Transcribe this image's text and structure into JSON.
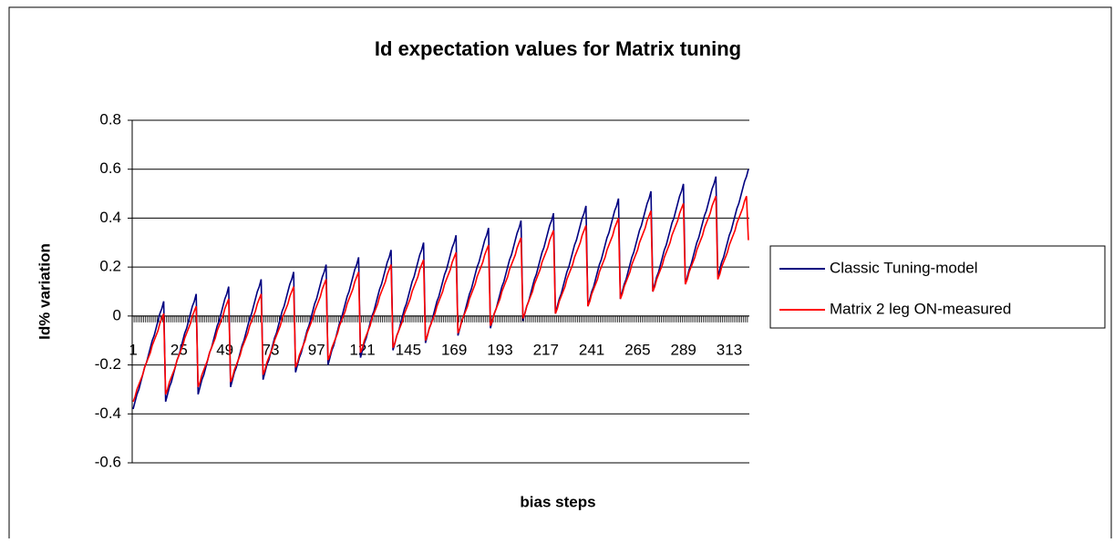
{
  "chart_data": {
    "type": "line",
    "title": "Id expectation values for Matrix tuning",
    "x_label": "bias steps",
    "y_label": "Id% variation",
    "ylim": [
      -0.6,
      0.8
    ],
    "yticks": [
      -0.6,
      -0.4,
      -0.2,
      0,
      0.2,
      0.4,
      0.6,
      0.8
    ],
    "grid": true,
    "legend": "right",
    "categories": [
      "1",
      null,
      null,
      null,
      null,
      null,
      null,
      null,
      null,
      null,
      null,
      null,
      null,
      null,
      null,
      null,
      null,
      null,
      null,
      null,
      null,
      null,
      null,
      null,
      "25",
      null,
      null,
      null,
      null,
      null,
      null,
      null,
      null,
      null,
      null,
      null,
      null,
      null,
      null,
      null,
      null,
      null,
      null,
      null,
      null,
      null,
      null,
      null,
      "49",
      null,
      null,
      null,
      null,
      null,
      null,
      null,
      null,
      null,
      null,
      null,
      null,
      null,
      null,
      null,
      null,
      null,
      null,
      null,
      null,
      null,
      null,
      null,
      "73",
      null,
      null,
      null,
      null,
      null,
      null,
      null,
      null,
      null,
      null,
      null,
      null,
      null,
      null,
      null,
      null,
      null,
      null,
      null,
      null,
      null,
      null,
      null,
      "97",
      null,
      null,
      null,
      null,
      null,
      null,
      null,
      null,
      null,
      null,
      null,
      null,
      null,
      null,
      null,
      null,
      null,
      null,
      null,
      null,
      null,
      null,
      null,
      "121",
      null,
      null,
      null,
      null,
      null,
      null,
      null,
      null,
      null,
      null,
      null,
      null,
      null,
      null,
      null,
      null,
      null,
      null,
      null,
      null,
      null,
      null,
      null,
      "145",
      null,
      null,
      null,
      null,
      null,
      null,
      null,
      null,
      null,
      null,
      null,
      null,
      null,
      null,
      null,
      null,
      null,
      null,
      null,
      null,
      null,
      null,
      null,
      "169",
      null,
      null,
      null,
      null,
      null,
      null,
      null,
      null,
      null,
      null,
      null,
      null,
      null,
      null,
      null,
      null,
      null,
      null,
      null,
      null,
      null,
      null,
      null,
      "193",
      null,
      null,
      null,
      null,
      null,
      null,
      null,
      null,
      null,
      null,
      null,
      null,
      null,
      null,
      null,
      null,
      null,
      null,
      null,
      null,
      null,
      null,
      null,
      "217",
      null,
      null,
      null,
      null,
      null,
      null,
      null,
      null,
      null,
      null,
      null,
      null,
      null,
      null,
      null,
      null,
      null,
      null,
      null,
      null,
      null,
      null,
      null,
      "241",
      null,
      null,
      null,
      null,
      null,
      null,
      null,
      null,
      null,
      null,
      null,
      null,
      null,
      null,
      null,
      null,
      null,
      null,
      null,
      null,
      null,
      null,
      null,
      "265",
      null,
      null,
      null,
      null,
      null,
      null,
      null,
      null,
      null,
      null,
      null,
      null,
      null,
      null,
      null,
      null,
      null,
      null,
      null,
      null,
      null,
      null,
      null,
      "289",
      null,
      null,
      null,
      null,
      null,
      null,
      null,
      null,
      null,
      null,
      null,
      null,
      null,
      null,
      null,
      null,
      null,
      null,
      null,
      null,
      null,
      null,
      null,
      "313",
      null,
      null,
      null,
      null,
      null,
      null,
      null,
      null,
      null,
      null
    ],
    "series": [
      {
        "name": "Classic Tuning-model",
        "color": "#000080",
        "values": [
          -0.38,
          -0.35,
          -0.32,
          -0.3,
          -0.27,
          -0.24,
          -0.21,
          -0.19,
          -0.16,
          -0.13,
          -0.1,
          -0.08,
          -0.05,
          -0.02,
          0.01,
          0.03,
          0.06,
          -0.35,
          -0.32,
          -0.29,
          -0.27,
          -0.24,
          -0.21,
          -0.18,
          -0.16,
          -0.13,
          -0.1,
          -0.07,
          -0.05,
          -0.02,
          0.01,
          0.04,
          0.06,
          0.09,
          -0.32,
          -0.29,
          -0.26,
          -0.24,
          -0.21,
          -0.18,
          -0.15,
          -0.13,
          -0.1,
          -0.07,
          -0.04,
          -0.02,
          0.01,
          0.04,
          0.07,
          0.09,
          0.12,
          -0.29,
          -0.26,
          -0.23,
          -0.21,
          -0.18,
          -0.15,
          -0.12,
          -0.1,
          -0.07,
          -0.04,
          -0.01,
          0.01,
          0.04,
          0.07,
          0.1,
          0.12,
          0.15,
          -0.26,
          -0.23,
          -0.2,
          -0.18,
          -0.15,
          -0.12,
          -0.09,
          -0.07,
          -0.04,
          -0.01,
          0.02,
          0.04,
          0.07,
          0.1,
          0.13,
          0.15,
          0.18,
          -0.23,
          -0.2,
          -0.17,
          -0.15,
          -0.12,
          -0.09,
          -0.06,
          -0.04,
          -0.01,
          0.02,
          0.05,
          0.07,
          0.1,
          0.13,
          0.16,
          0.18,
          0.21,
          -0.2,
          -0.17,
          -0.14,
          -0.12,
          -0.09,
          -0.06,
          -0.03,
          -0.01,
          0.02,
          0.05,
          0.08,
          0.1,
          0.13,
          0.16,
          0.19,
          0.21,
          0.24,
          -0.17,
          -0.14,
          -0.11,
          -0.09,
          -0.06,
          -0.03,
          0,
          0.02,
          0.05,
          0.08,
          0.11,
          0.13,
          0.16,
          0.19,
          0.22,
          0.24,
          0.27,
          -0.14,
          -0.11,
          -0.08,
          -0.06,
          -0.03,
          0,
          0.03,
          0.05,
          0.08,
          0.11,
          0.14,
          0.16,
          0.19,
          0.22,
          0.25,
          0.27,
          0.3,
          -0.11,
          -0.08,
          -0.05,
          -0.03,
          0,
          0.03,
          0.06,
          0.08,
          0.11,
          0.14,
          0.17,
          0.19,
          0.22,
          0.25,
          0.28,
          0.3,
          0.33,
          -0.08,
          -0.05,
          -0.02,
          0,
          0.03,
          0.06,
          0.09,
          0.11,
          0.14,
          0.17,
          0.2,
          0.22,
          0.25,
          0.28,
          0.31,
          0.33,
          0.36,
          -0.05,
          -0.02,
          0.01,
          0.03,
          0.06,
          0.09,
          0.12,
          0.14,
          0.17,
          0.2,
          0.23,
          0.25,
          0.28,
          0.31,
          0.34,
          0.36,
          0.39,
          -0.02,
          0.01,
          0.04,
          0.06,
          0.09,
          0.12,
          0.15,
          0.17,
          0.2,
          0.23,
          0.26,
          0.28,
          0.31,
          0.34,
          0.37,
          0.39,
          0.42,
          0.01,
          0.04,
          0.07,
          0.09,
          0.12,
          0.15,
          0.18,
          0.2,
          0.23,
          0.26,
          0.29,
          0.31,
          0.34,
          0.37,
          0.4,
          0.42,
          0.45,
          0.04,
          0.07,
          0.1,
          0.12,
          0.15,
          0.18,
          0.21,
          0.23,
          0.26,
          0.29,
          0.32,
          0.34,
          0.37,
          0.4,
          0.43,
          0.45,
          0.48,
          0.07,
          0.1,
          0.13,
          0.15,
          0.18,
          0.21,
          0.24,
          0.26,
          0.29,
          0.32,
          0.35,
          0.37,
          0.4,
          0.43,
          0.46,
          0.48,
          0.51,
          0.1,
          0.13,
          0.16,
          0.18,
          0.21,
          0.24,
          0.27,
          0.29,
          0.32,
          0.35,
          0.38,
          0.4,
          0.43,
          0.46,
          0.49,
          0.51,
          0.54,
          0.13,
          0.16,
          0.19,
          0.21,
          0.24,
          0.27,
          0.3,
          0.32,
          0.35,
          0.38,
          0.41,
          0.43,
          0.46,
          0.49,
          0.52,
          0.54,
          0.57,
          0.16,
          0.19,
          0.22,
          0.24,
          0.27,
          0.3,
          0.33,
          0.35,
          0.38,
          0.41,
          0.44,
          0.46,
          0.49,
          0.52,
          0.55,
          0.57,
          0.6
        ]
      },
      {
        "name": "Matrix 2 leg ON-measured",
        "color": "#ff0000",
        "values": [
          -0.35,
          -0.33,
          -0.3,
          -0.28,
          -0.26,
          -0.24,
          -0.21,
          -0.19,
          -0.17,
          -0.15,
          -0.12,
          -0.1,
          -0.08,
          -0.06,
          -0.03,
          -0.01,
          0.01,
          -0.32,
          -0.3,
          -0.27,
          -0.25,
          -0.23,
          -0.21,
          -0.18,
          -0.16,
          -0.14,
          -0.12,
          -0.09,
          -0.07,
          -0.05,
          -0.03,
          0,
          0.02,
          0.04,
          -0.29,
          -0.27,
          -0.24,
          -0.22,
          -0.2,
          -0.18,
          -0.15,
          -0.13,
          -0.11,
          -0.09,
          -0.06,
          -0.04,
          -0.02,
          0,
          0.03,
          0.05,
          0.07,
          -0.27,
          -0.25,
          -0.22,
          -0.2,
          -0.18,
          -0.16,
          -0.13,
          -0.11,
          -0.09,
          -0.07,
          -0.04,
          -0.02,
          0,
          0.02,
          0.05,
          0.07,
          0.09,
          -0.24,
          -0.22,
          -0.19,
          -0.17,
          -0.15,
          -0.13,
          -0.1,
          -0.08,
          -0.06,
          -0.04,
          -0.01,
          0.01,
          0.03,
          0.05,
          0.08,
          0.1,
          0.12,
          -0.21,
          -0.19,
          -0.16,
          -0.14,
          -0.12,
          -0.1,
          -0.07,
          -0.05,
          -0.03,
          -0.01,
          0.02,
          0.04,
          0.06,
          0.08,
          0.11,
          0.13,
          0.15,
          -0.18,
          -0.16,
          -0.13,
          -0.11,
          -0.09,
          -0.07,
          -0.04,
          -0.02,
          0,
          0.02,
          0.05,
          0.07,
          0.09,
          0.11,
          0.14,
          0.16,
          0.18,
          -0.15,
          -0.13,
          -0.1,
          -0.08,
          -0.06,
          -0.04,
          -0.01,
          0.01,
          0.03,
          0.05,
          0.08,
          0.1,
          0.12,
          0.14,
          0.17,
          0.19,
          0.21,
          -0.13,
          -0.11,
          -0.08,
          -0.06,
          -0.04,
          -0.02,
          0.01,
          0.03,
          0.05,
          0.07,
          0.1,
          0.12,
          0.14,
          0.16,
          0.19,
          0.21,
          0.23,
          -0.1,
          -0.08,
          -0.05,
          -0.03,
          -0.01,
          0.01,
          0.04,
          0.06,
          0.08,
          0.1,
          0.13,
          0.15,
          0.17,
          0.19,
          0.22,
          0.24,
          0.26,
          -0.07,
          -0.05,
          -0.02,
          0,
          0.02,
          0.04,
          0.07,
          0.09,
          0.11,
          0.13,
          0.16,
          0.18,
          0.2,
          0.22,
          0.25,
          0.27,
          0.29,
          -0.04,
          -0.02,
          0.01,
          0.03,
          0.05,
          0.07,
          0.1,
          0.12,
          0.14,
          0.16,
          0.19,
          0.21,
          0.23,
          0.25,
          0.28,
          0.3,
          0.32,
          -0.01,
          0.01,
          0.04,
          0.06,
          0.08,
          0.1,
          0.13,
          0.15,
          0.17,
          0.19,
          0.22,
          0.24,
          0.26,
          0.28,
          0.31,
          0.33,
          0.35,
          0.01,
          0.03,
          0.06,
          0.08,
          0.1,
          0.12,
          0.15,
          0.17,
          0.19,
          0.21,
          0.24,
          0.26,
          0.28,
          0.3,
          0.33,
          0.35,
          0.37,
          0.04,
          0.06,
          0.09,
          0.11,
          0.13,
          0.15,
          0.18,
          0.2,
          0.22,
          0.24,
          0.27,
          0.29,
          0.31,
          0.33,
          0.36,
          0.38,
          0.4,
          0.07,
          0.09,
          0.12,
          0.14,
          0.16,
          0.18,
          0.21,
          0.23,
          0.25,
          0.27,
          0.3,
          0.32,
          0.34,
          0.36,
          0.39,
          0.41,
          0.43,
          0.1,
          0.12,
          0.15,
          0.17,
          0.19,
          0.21,
          0.24,
          0.26,
          0.28,
          0.3,
          0.33,
          0.35,
          0.37,
          0.39,
          0.42,
          0.44,
          0.46,
          0.13,
          0.15,
          0.18,
          0.2,
          0.22,
          0.24,
          0.27,
          0.29,
          0.31,
          0.33,
          0.36,
          0.38,
          0.4,
          0.42,
          0.45,
          0.47,
          0.49,
          0.15,
          0.17,
          0.2,
          0.22,
          0.24,
          0.26,
          0.29,
          0.31,
          0.33,
          0.35,
          0.38,
          0.4,
          0.42,
          0.44,
          0.47,
          0.49,
          0.31
        ]
      }
    ]
  }
}
